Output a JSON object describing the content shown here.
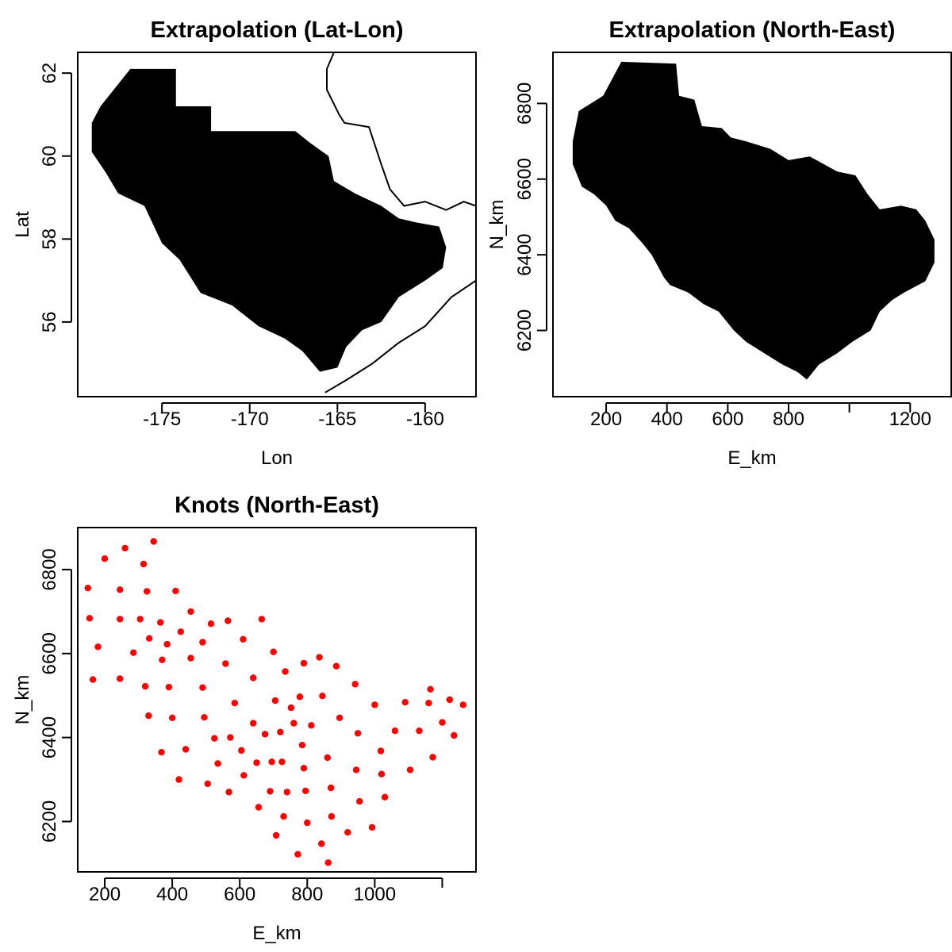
{
  "chart_data": [
    {
      "type": "area",
      "id": "lat-lon",
      "title": "Extrapolation (Lat-Lon)",
      "xlabel": "Lon",
      "ylabel": "Lat",
      "xlim": [
        -179.8,
        -157.1
      ],
      "ylim": [
        54.2,
        62.5
      ],
      "x_ticks": [
        -175,
        -170,
        -165,
        -160
      ],
      "x_tick_labels": [
        "-175",
        "-170",
        "-165",
        "-160"
      ],
      "y_ticks": [
        56,
        58,
        60,
        62
      ],
      "y_tick_labels": [
        "56",
        "58",
        "60",
        "62"
      ],
      "fill_color": "#000000",
      "region_outline": [
        [
          -176.8,
          62.1
        ],
        [
          -174.2,
          62.1
        ],
        [
          -174.2,
          61.2
        ],
        [
          -172.2,
          61.2
        ],
        [
          -172.2,
          60.6
        ],
        [
          -167.4,
          60.6
        ],
        [
          -166.5,
          60.3
        ],
        [
          -165.5,
          60.0
        ],
        [
          -165.2,
          59.4
        ],
        [
          -164.0,
          59.1
        ],
        [
          -162.5,
          58.8
        ],
        [
          -161.5,
          58.5
        ],
        [
          -160.5,
          58.4
        ],
        [
          -159.2,
          58.3
        ],
        [
          -158.8,
          57.8
        ],
        [
          -159.0,
          57.3
        ],
        [
          -160.0,
          57.0
        ],
        [
          -161.5,
          56.6
        ],
        [
          -162.5,
          56.0
        ],
        [
          -163.6,
          55.8
        ],
        [
          -164.5,
          55.4
        ],
        [
          -165.0,
          54.9
        ],
        [
          -166.0,
          54.8
        ],
        [
          -167.0,
          55.3
        ],
        [
          -168.0,
          55.6
        ],
        [
          -169.5,
          55.9
        ],
        [
          -171.0,
          56.4
        ],
        [
          -172.8,
          56.7
        ],
        [
          -174.0,
          57.5
        ],
        [
          -175.0,
          57.9
        ],
        [
          -176.0,
          58.8
        ],
        [
          -177.5,
          59.1
        ],
        [
          -178.2,
          59.6
        ],
        [
          -179.0,
          60.1
        ],
        [
          -179.0,
          60.8
        ],
        [
          -178.5,
          61.2
        ]
      ],
      "coastline": [
        [
          -165.2,
          62.5
        ],
        [
          -165.6,
          62.1
        ],
        [
          -165.6,
          61.6
        ],
        [
          -164.9,
          61.0
        ],
        [
          -164.6,
          60.8
        ],
        [
          -163.2,
          60.7
        ],
        [
          -162.5,
          59.8
        ],
        [
          -162.0,
          59.2
        ],
        [
          -161.2,
          58.8
        ],
        [
          -160.0,
          58.9
        ],
        [
          -158.8,
          58.7
        ],
        [
          -157.8,
          58.9
        ],
        [
          -157.1,
          58.8
        ]
      ],
      "coastline_2": [
        [
          -157.1,
          57.0
        ],
        [
          -158.5,
          56.6
        ],
        [
          -160.0,
          55.9
        ],
        [
          -161.5,
          55.5
        ],
        [
          -163.0,
          55.0
        ],
        [
          -164.5,
          54.6
        ],
        [
          -165.7,
          54.3
        ]
      ]
    },
    {
      "type": "area",
      "id": "north-east",
      "title": "Extrapolation (North-East)",
      "xlabel": "E_km",
      "ylabel": "N_km",
      "xlim": [
        25,
        1335
      ],
      "ylim": [
        6025,
        6935
      ],
      "x_ticks": [
        200,
        400,
        600,
        800,
        1000,
        1200
      ],
      "x_tick_labels": [
        "200",
        "400",
        "600",
        "800",
        "",
        "1200"
      ],
      "y_ticks": [
        6200,
        6400,
        6600,
        6800
      ],
      "y_tick_labels": [
        "6200",
        "6400",
        "6600",
        "6800"
      ],
      "fill_color": "#000000",
      "region_outline": [
        [
          250,
          6910
        ],
        [
          430,
          6905
        ],
        [
          440,
          6820
        ],
        [
          490,
          6810
        ],
        [
          515,
          6740
        ],
        [
          580,
          6735
        ],
        [
          610,
          6710
        ],
        [
          660,
          6700
        ],
        [
          740,
          6680
        ],
        [
          800,
          6650
        ],
        [
          870,
          6660
        ],
        [
          960,
          6620
        ],
        [
          1020,
          6610
        ],
        [
          1060,
          6560
        ],
        [
          1100,
          6520
        ],
        [
          1170,
          6530
        ],
        [
          1220,
          6520
        ],
        [
          1250,
          6490
        ],
        [
          1280,
          6440
        ],
        [
          1280,
          6380
        ],
        [
          1250,
          6330
        ],
        [
          1180,
          6300
        ],
        [
          1140,
          6280
        ],
        [
          1100,
          6250
        ],
        [
          1070,
          6200
        ],
        [
          1010,
          6170
        ],
        [
          960,
          6140
        ],
        [
          900,
          6110
        ],
        [
          860,
          6070
        ],
        [
          830,
          6090
        ],
        [
          780,
          6110
        ],
        [
          720,
          6140
        ],
        [
          660,
          6170
        ],
        [
          620,
          6200
        ],
        [
          570,
          6250
        ],
        [
          520,
          6270
        ],
        [
          470,
          6300
        ],
        [
          410,
          6320
        ],
        [
          390,
          6340
        ],
        [
          350,
          6400
        ],
        [
          320,
          6430
        ],
        [
          275,
          6470
        ],
        [
          230,
          6490
        ],
        [
          200,
          6530
        ],
        [
          160,
          6560
        ],
        [
          120,
          6580
        ],
        [
          90,
          6640
        ],
        [
          90,
          6700
        ],
        [
          110,
          6780
        ],
        [
          190,
          6820
        ]
      ]
    },
    {
      "type": "scatter",
      "id": "knots",
      "title": "Knots (North-East)",
      "xlabel": "E_km",
      "ylabel": "N_km",
      "xlim": [
        120,
        1300
      ],
      "ylim": [
        6080,
        6900
      ],
      "x_ticks": [
        200,
        400,
        600,
        800,
        1000,
        1200
      ],
      "x_tick_labels": [
        "200",
        "400",
        "600",
        "800",
        "1000",
        ""
      ],
      "y_ticks": [
        6200,
        6400,
        6600,
        6800
      ],
      "y_tick_labels": [
        "6200",
        "6400",
        "6600",
        "6800"
      ],
      "point_color": "#ff0000",
      "points": [
        [
          150,
          6756
        ],
        [
          155,
          6684
        ],
        [
          165,
          6538
        ],
        [
          180,
          6616
        ],
        [
          200,
          6826
        ],
        [
          245,
          6752
        ],
        [
          245,
          6682
        ],
        [
          245,
          6540
        ],
        [
          260,
          6851
        ],
        [
          285,
          6602
        ],
        [
          305,
          6682
        ],
        [
          315,
          6813
        ],
        [
          320,
          6522
        ],
        [
          325,
          6748
        ],
        [
          330,
          6452
        ],
        [
          332,
          6636
        ],
        [
          345,
          6867
        ],
        [
          365,
          6674
        ],
        [
          368,
          6365
        ],
        [
          370,
          6585
        ],
        [
          385,
          6622
        ],
        [
          390,
          6520
        ],
        [
          400,
          6447
        ],
        [
          410,
          6749
        ],
        [
          420,
          6300
        ],
        [
          425,
          6652
        ],
        [
          440,
          6372
        ],
        [
          455,
          6700
        ],
        [
          455,
          6589
        ],
        [
          490,
          6519
        ],
        [
          490,
          6627
        ],
        [
          495,
          6448
        ],
        [
          505,
          6290
        ],
        [
          515,
          6671
        ],
        [
          525,
          6398
        ],
        [
          535,
          6338
        ],
        [
          558,
          6576
        ],
        [
          565,
          6678
        ],
        [
          568,
          6270
        ],
        [
          572,
          6400
        ],
        [
          585,
          6482
        ],
        [
          605,
          6369
        ],
        [
          610,
          6634
        ],
        [
          612,
          6310
        ],
        [
          640,
          6434
        ],
        [
          640,
          6542
        ],
        [
          650,
          6340
        ],
        [
          656,
          6234
        ],
        [
          665,
          6682
        ],
        [
          675,
          6408
        ],
        [
          690,
          6272
        ],
        [
          695,
          6342
        ],
        [
          700,
          6604
        ],
        [
          705,
          6488
        ],
        [
          708,
          6167
        ],
        [
          720,
          6413
        ],
        [
          725,
          6342
        ],
        [
          730,
          6212
        ],
        [
          735,
          6557
        ],
        [
          740,
          6270
        ],
        [
          752,
          6471
        ],
        [
          760,
          6434
        ],
        [
          772,
          6122
        ],
        [
          778,
          6497
        ],
        [
          785,
          6382
        ],
        [
          790,
          6577
        ],
        [
          790,
          6327
        ],
        [
          795,
          6273
        ],
        [
          800,
          6197
        ],
        [
          812,
          6429
        ],
        [
          836,
          6591
        ],
        [
          842,
          6147
        ],
        [
          845,
          6499
        ],
        [
          860,
          6352
        ],
        [
          862,
          6102
        ],
        [
          870,
          6280
        ],
        [
          872,
          6212
        ],
        [
          886,
          6570
        ],
        [
          896,
          6447
        ],
        [
          920,
          6174
        ],
        [
          942,
          6527
        ],
        [
          945,
          6323
        ],
        [
          950,
          6410
        ],
        [
          955,
          6248
        ],
        [
          992,
          6186
        ],
        [
          1000,
          6478
        ],
        [
          1018,
          6368
        ],
        [
          1020,
          6313
        ],
        [
          1030,
          6258
        ],
        [
          1060,
          6416
        ],
        [
          1090,
          6484
        ],
        [
          1105,
          6323
        ],
        [
          1132,
          6416
        ],
        [
          1160,
          6482
        ],
        [
          1165,
          6515
        ],
        [
          1172,
          6353
        ],
        [
          1200,
          6436
        ],
        [
          1222,
          6490
        ],
        [
          1235,
          6405
        ],
        [
          1262,
          6478
        ]
      ]
    }
  ]
}
